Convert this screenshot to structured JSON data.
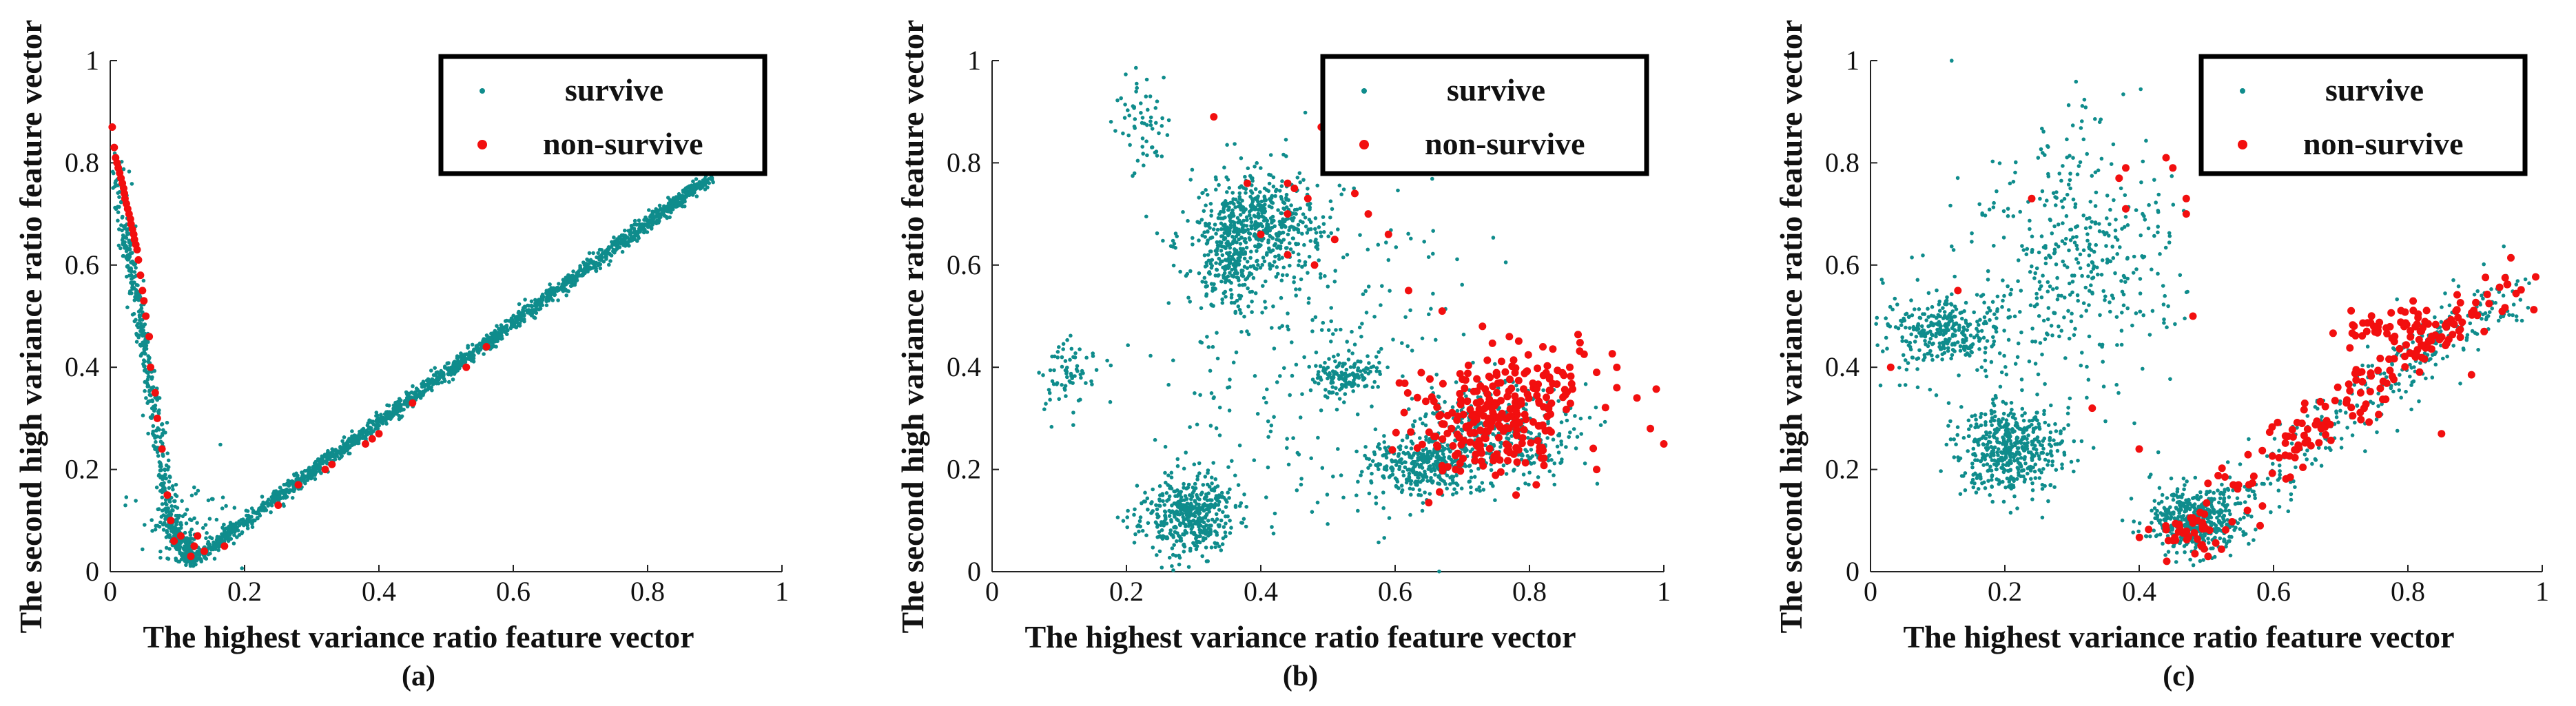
{
  "colors": {
    "survive": "#0f8c8c",
    "non_survive": "#f20f0f",
    "axis": "#222222"
  },
  "chart_data": [
    {
      "type": "scatter",
      "panel_label": "(a)",
      "xlabel": "The highest variance ratio feature vector",
      "ylabel": "The second high variance ratio feature vector",
      "xlim": [
        0,
        1
      ],
      "ylim": [
        0,
        1
      ],
      "xticks": [
        0,
        0.2,
        0.4,
        0.6,
        0.8,
        1
      ],
      "xtick_labels": [
        "0",
        "0.2",
        "0.4",
        "0.6",
        "0.8",
        "1"
      ],
      "yticks": [
        0,
        0.2,
        0.4,
        0.6,
        0.8,
        1
      ],
      "ytick_labels": [
        "0",
        "0.2",
        "0.4",
        "0.6",
        "0.8",
        "1"
      ],
      "legend": {
        "position": "top-right",
        "entries": [
          "survive",
          "non-survive"
        ]
      },
      "series": [
        {
          "name": "survive",
          "clusters": [
            {
              "kind": "line",
              "from": [
                0.005,
                0.82
              ],
              "to": [
                0.09,
                0.1
              ],
              "n": 420,
              "jitter": 0.006,
              "seed": 11
            },
            {
              "kind": "line",
              "from": [
                0.09,
                0.1
              ],
              "to": [
                0.12,
                0.02
              ],
              "n": 160,
              "jitter": 0.008,
              "seed": 12
            },
            {
              "kind": "line",
              "from": [
                0.12,
                0.02
              ],
              "to": [
                0.89,
                0.77
              ],
              "n": 1700,
              "jitter": 0.006,
              "seed": 13
            },
            {
              "kind": "blob",
              "center": [
                0.11,
                0.08
              ],
              "spread": [
                0.03,
                0.04
              ],
              "n": 90,
              "seed": 14
            },
            {
              "kind": "blob",
              "center": [
                0.15,
                0.12
              ],
              "spread": [
                0.04,
                0.05
              ],
              "n": 20,
              "seed": 15
            }
          ]
        },
        {
          "name": "non-survive",
          "points": [
            [
              0.003,
              0.87
            ],
            [
              0.006,
              0.83
            ],
            [
              0.008,
              0.81
            ],
            [
              0.01,
              0.8
            ],
            [
              0.012,
              0.79
            ],
            [
              0.014,
              0.78
            ],
            [
              0.016,
              0.77
            ],
            [
              0.018,
              0.76
            ],
            [
              0.02,
              0.75
            ],
            [
              0.021,
              0.74
            ],
            [
              0.022,
              0.73
            ],
            [
              0.024,
              0.72
            ],
            [
              0.026,
              0.71
            ],
            [
              0.028,
              0.7
            ],
            [
              0.03,
              0.69
            ],
            [
              0.031,
              0.68
            ],
            [
              0.033,
              0.67
            ],
            [
              0.035,
              0.66
            ],
            [
              0.036,
              0.65
            ],
            [
              0.038,
              0.64
            ],
            [
              0.04,
              0.63
            ],
            [
              0.042,
              0.61
            ],
            [
              0.045,
              0.58
            ],
            [
              0.048,
              0.55
            ],
            [
              0.05,
              0.53
            ],
            [
              0.053,
              0.5
            ],
            [
              0.058,
              0.46
            ],
            [
              0.06,
              0.4
            ],
            [
              0.067,
              0.35
            ],
            [
              0.07,
              0.3
            ],
            [
              0.077,
              0.24
            ],
            [
              0.085,
              0.15
            ],
            [
              0.09,
              0.1
            ],
            [
              0.095,
              0.06
            ],
            [
              0.105,
              0.07
            ],
            [
              0.12,
              0.03
            ],
            [
              0.125,
              0.05
            ],
            [
              0.13,
              0.07
            ],
            [
              0.14,
              0.04
            ],
            [
              0.17,
              0.05
            ],
            [
              0.25,
              0.13
            ],
            [
              0.28,
              0.17
            ],
            [
              0.32,
              0.2
            ],
            [
              0.33,
              0.21
            ],
            [
              0.38,
              0.25
            ],
            [
              0.39,
              0.26
            ],
            [
              0.4,
              0.27
            ],
            [
              0.45,
              0.33
            ],
            [
              0.53,
              0.4
            ],
            [
              0.56,
              0.44
            ]
          ]
        }
      ]
    },
    {
      "type": "scatter",
      "panel_label": "(b)",
      "xlabel": "The highest variance ratio feature vector",
      "ylabel": "The second high variance ratio feature vector",
      "xlim": [
        0,
        1
      ],
      "ylim": [
        0,
        1
      ],
      "xticks": [
        0,
        0.2,
        0.4,
        0.6,
        0.8,
        1
      ],
      "xtick_labels": [
        "0",
        "0.2",
        "0.4",
        "0.6",
        "0.8",
        "1"
      ],
      "yticks": [
        0,
        0.2,
        0.4,
        0.6,
        0.8,
        1
      ],
      "ytick_labels": [
        "0",
        "0.2",
        "0.4",
        "0.6",
        "0.8",
        "1"
      ],
      "legend": {
        "position": "top-right",
        "entries": [
          "survive",
          "non-survive"
        ]
      },
      "series": [
        {
          "name": "survive",
          "clusters": [
            {
              "kind": "blob",
              "center": [
                0.4,
                0.68
              ],
              "spread": [
                0.05,
                0.05
              ],
              "n": 520,
              "seed": 21
            },
            {
              "kind": "blob",
              "center": [
                0.35,
                0.6
              ],
              "spread": [
                0.02,
                0.05
              ],
              "n": 180,
              "seed": 22
            },
            {
              "kind": "blob",
              "center": [
                0.29,
                0.11
              ],
              "spread": [
                0.035,
                0.04
              ],
              "n": 450,
              "seed": 23
            },
            {
              "kind": "blob",
              "center": [
                0.11,
                0.38
              ],
              "spread": [
                0.02,
                0.04
              ],
              "n": 70,
              "seed": 24
            },
            {
              "kind": "blob",
              "center": [
                0.53,
                0.38
              ],
              "spread": [
                0.025,
                0.015
              ],
              "n": 130,
              "seed": 25
            },
            {
              "kind": "blob",
              "center": [
                0.64,
                0.21
              ],
              "spread": [
                0.04,
                0.03
              ],
              "n": 350,
              "seed": 26
            },
            {
              "kind": "blob",
              "center": [
                0.75,
                0.27
              ],
              "spread": [
                0.06,
                0.05
              ],
              "n": 380,
              "seed": 27
            },
            {
              "kind": "blob",
              "center": [
                0.23,
                0.88
              ],
              "spread": [
                0.02,
                0.05
              ],
              "n": 60,
              "seed": 28
            },
            {
              "kind": "blob",
              "center": [
                0.45,
                0.45
              ],
              "spread": [
                0.12,
                0.18
              ],
              "n": 280,
              "seed": 29
            }
          ]
        },
        {
          "name": "non-survive",
          "points": [
            [
              0.33,
              0.89
            ],
            [
              0.49,
              0.87
            ],
            [
              0.38,
              0.76
            ],
            [
              0.44,
              0.76
            ],
            [
              0.45,
              0.75
            ],
            [
              0.47,
              0.73
            ],
            [
              0.54,
              0.74
            ],
            [
              0.44,
              0.7
            ],
            [
              0.56,
              0.7
            ],
            [
              0.4,
              0.66
            ],
            [
              0.51,
              0.65
            ],
            [
              0.59,
              0.66
            ],
            [
              0.44,
              0.62
            ],
            [
              0.48,
              0.6
            ],
            [
              0.62,
              0.55
            ],
            [
              0.67,
              0.51
            ],
            [
              0.73,
              0.48
            ],
            [
              0.77,
              0.46
            ],
            [
              0.82,
              0.44
            ],
            [
              0.86,
              0.4
            ],
            [
              0.9,
              0.39
            ],
            [
              0.93,
              0.36
            ],
            [
              0.96,
              0.34
            ],
            [
              0.98,
              0.28
            ],
            [
              1.0,
              0.25
            ],
            [
              0.9,
              0.2
            ],
            [
              0.81,
              0.17
            ],
            [
              0.78,
              0.15
            ],
            [
              0.69,
              0.2
            ]
          ],
          "clusters": [
            {
              "kind": "blob",
              "center": [
                0.73,
                0.28
              ],
              "spread": [
                0.06,
                0.05
              ],
              "n": 190,
              "seed": 31
            },
            {
              "kind": "blob",
              "center": [
                0.8,
                0.37
              ],
              "spread": [
                0.07,
                0.04
              ],
              "n": 80,
              "seed": 32
            }
          ]
        }
      ]
    },
    {
      "type": "scatter",
      "panel_label": "(c)",
      "xlabel": "The highest variance ratio feature vector",
      "ylabel": "The second high variance ratio feature vector",
      "xlim": [
        0,
        1
      ],
      "ylim": [
        0,
        1
      ],
      "xticks": [
        0,
        0.2,
        0.4,
        0.6,
        0.8,
        1
      ],
      "xtick_labels": [
        "0",
        "0.2",
        "0.4",
        "0.6",
        "0.8",
        "1"
      ],
      "yticks": [
        0,
        0.2,
        0.4,
        0.6,
        0.8,
        1
      ],
      "ytick_labels": [
        "0",
        "0.2",
        "0.4",
        "0.6",
        "0.8",
        "1"
      ],
      "legend": {
        "position": "top-right",
        "entries": [
          "survive",
          "non-survive"
        ]
      },
      "series": [
        {
          "name": "survive",
          "clusters": [
            {
              "kind": "blob",
              "center": [
                0.12,
                0.47
              ],
              "spread": [
                0.04,
                0.03
              ],
              "n": 280,
              "seed": 41
            },
            {
              "kind": "blob",
              "center": [
                0.21,
                0.24
              ],
              "spread": [
                0.04,
                0.05
              ],
              "n": 480,
              "seed": 42
            },
            {
              "kind": "blob",
              "center": [
                0.3,
                0.62
              ],
              "spread": [
                0.08,
                0.13
              ],
              "n": 420,
              "seed": 43
            },
            {
              "kind": "blob",
              "center": [
                0.48,
                0.1
              ],
              "spread": [
                0.035,
                0.035
              ],
              "n": 460,
              "seed": 44
            },
            {
              "kind": "blob",
              "center": [
                0.05,
                0.46
              ],
              "spread": [
                0.03,
                0.06
              ],
              "n": 50,
              "seed": 45
            },
            {
              "kind": "line",
              "from": [
                0.5,
                0.1
              ],
              "to": [
                0.96,
                0.57
              ],
              "n": 330,
              "jitter": 0.03,
              "seed": 46
            }
          ]
        },
        {
          "name": "non-survive",
          "points": [
            [
              0.03,
              0.4
            ],
            [
              0.13,
              0.55
            ],
            [
              0.24,
              0.73
            ],
            [
              0.37,
              0.77
            ],
            [
              0.38,
              0.71
            ],
            [
              0.38,
              0.79
            ],
            [
              0.44,
              0.81
            ],
            [
              0.45,
              0.79
            ],
            [
              0.47,
              0.73
            ],
            [
              0.47,
              0.7
            ],
            [
              0.48,
              0.5
            ],
            [
              0.33,
              0.32
            ],
            [
              0.85,
              0.27
            ],
            [
              0.58,
              0.09
            ],
            [
              0.4,
              0.24
            ]
          ],
          "clusters": [
            {
              "kind": "line",
              "from": [
                0.52,
                0.15
              ],
              "to": [
                0.97,
                0.57
              ],
              "n": 150,
              "jitter": 0.025,
              "seed": 51
            },
            {
              "kind": "blob",
              "center": [
                0.79,
                0.47
              ],
              "spread": [
                0.04,
                0.025
              ],
              "n": 60,
              "seed": 52
            },
            {
              "kind": "blob",
              "center": [
                0.48,
                0.08
              ],
              "spread": [
                0.03,
                0.025
              ],
              "n": 45,
              "seed": 53
            }
          ]
        }
      ]
    }
  ]
}
